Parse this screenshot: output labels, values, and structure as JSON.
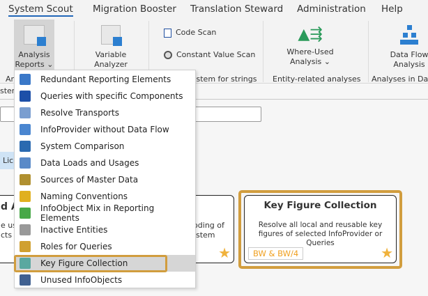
{
  "tabs": [
    {
      "label": "System Scout",
      "active": true
    },
    {
      "label": "Migration Booster"
    },
    {
      "label": "Translation Steward"
    },
    {
      "label": "Administration"
    },
    {
      "label": "Help"
    }
  ],
  "ribbon": {
    "analysis_reports": {
      "line1": "Analysis",
      "line2": "Reports ⌄"
    },
    "variable_analyzer": {
      "line1": "Variable",
      "line2": "Analyzer"
    },
    "code_scan": "Code Scan",
    "constant_value_scan": "Constant Value Scan",
    "where_used": {
      "line1": "Where-Used",
      "line2": "Analysis ⌄"
    },
    "data_flow": {
      "line1": "Data Flow",
      "line2": "Analysis"
    },
    "group_labels": [
      "An",
      "ystem for strings",
      "Entity-related analyses",
      "Analyses in Data"
    ]
  },
  "background": {
    "stem_fragment": "stem",
    "lice_button": "Lice",
    "left_card_title": "d A",
    "left_card_text1": "e usa",
    "left_card_text2": "cts a",
    "middle_card_text1": "coding of",
    "middle_card_text2": "stem"
  },
  "menu": {
    "items": [
      {
        "label": "Redundant Reporting Elements",
        "icon": "magnifier-icon"
      },
      {
        "label": "Queries with specific Components",
        "icon": "query-components-icon"
      },
      {
        "label": "Resolve Transports",
        "icon": "truck-icon"
      },
      {
        "label": "InfoProvider without Data Flow",
        "icon": "infoprovider-icon"
      },
      {
        "label": "System Comparison",
        "icon": "comparison-icon"
      },
      {
        "label": "Data Loads and Usages",
        "icon": "clock-db-icon"
      },
      {
        "label": "Sources of Master Data",
        "icon": "gears-icon"
      },
      {
        "label": "Naming Conventions",
        "icon": "warning-list-icon"
      },
      {
        "label": "InfoObject Mix in Reporting Elements",
        "icon": "infoobject-mix-icon"
      },
      {
        "label": "Inactive Entities",
        "icon": "cube-icon"
      },
      {
        "label": "Roles for Queries",
        "icon": "roles-icon"
      },
      {
        "label": "Key Figure Collection",
        "icon": "key-figure-icon",
        "selected": true
      },
      {
        "label": "Unused InfoObjects",
        "icon": "unused-infoobjects-icon"
      }
    ]
  },
  "card": {
    "title": "Key Figure Collection",
    "description": "Resolve all local and reusable key figures of selected InfoProvider or Queries",
    "tag": "BW & BW/4"
  },
  "colors": {
    "accent": "#2166b8",
    "highlight": "#d19d3e",
    "tag": "#f0a020",
    "star": "#f0b23c"
  }
}
